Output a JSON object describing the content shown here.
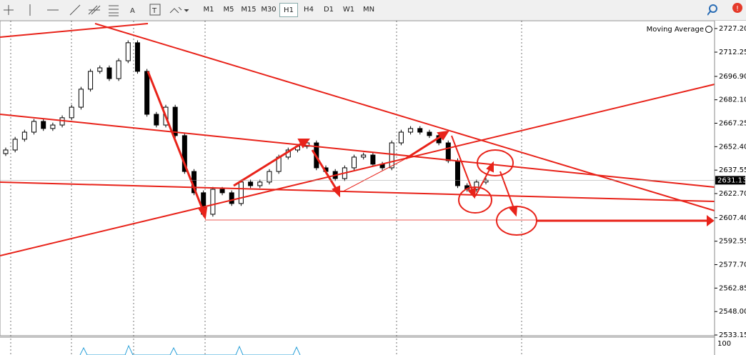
{
  "toolbar": {
    "timeframes": [
      "M1",
      "M5",
      "M15",
      "M30",
      "H1",
      "H4",
      "D1",
      "W1",
      "MN"
    ],
    "active": "H1"
  },
  "chart_data": {
    "type": "candlestick",
    "indicator": "Moving Average",
    "series": [
      {
        "name": null,
        "color": "#000000",
        "open": [
          2648.0,
          2650.3,
          2657.1,
          2661.6,
          2668.4,
          2663.9,
          2666.1,
          2670.7,
          2677.4,
          2688.8,
          2700.1,
          2702.3,
          2695.5,
          2706.8,
          2718.2,
          2700.1,
          2672.9,
          2666.1,
          2677.4,
          2659.4,
          2636.7,
          2623.2,
          2609.6,
          2625.4,
          2623.2,
          2616.4,
          2630.0,
          2627.7,
          2630.0,
          2636.7,
          2645.8,
          2650.3,
          2652.6,
          2654.8,
          2639.0,
          2636.7,
          2632.2,
          2639.0,
          2645.8,
          2647.1,
          2641.3,
          2639.0,
          2654.8,
          2661.6,
          2663.9,
          2661.6,
          2659.4,
          2654.8,
          2643.5,
          2627.7,
          2625.4,
          2630.0
        ],
        "high": [
          2651.8,
          2658.6,
          2663.1,
          2669.9,
          2669.9,
          2667.6,
          2672.2,
          2678.9,
          2690.3,
          2701.6,
          2703.8,
          2703.8,
          2708.3,
          2719.7,
          2719.7,
          2701.6,
          2674.4,
          2678.9,
          2678.9,
          2660.9,
          2638.2,
          2624.7,
          2626.9,
          2626.9,
          2624.7,
          2631.5,
          2631.5,
          2631.5,
          2638.2,
          2647.3,
          2651.8,
          2654.1,
          2656.3,
          2656.3,
          2640.5,
          2638.2,
          2640.5,
          2647.3,
          2648.6,
          2648.6,
          2642.8,
          2656.3,
          2663.1,
          2665.4,
          2665.4,
          2663.1,
          2660.9,
          2656.3,
          2645.0,
          2629.2,
          2631.5,
          2632.6
        ],
        "low": [
          2646.5,
          2648.8,
          2655.6,
          2660.1,
          2662.4,
          2662.4,
          2664.6,
          2669.2,
          2675.9,
          2687.3,
          2698.6,
          2694.0,
          2694.0,
          2705.3,
          2698.6,
          2671.4,
          2664.6,
          2664.6,
          2657.9,
          2635.2,
          2621.7,
          2608.1,
          2608.1,
          2621.7,
          2614.9,
          2614.9,
          2626.2,
          2626.2,
          2628.5,
          2635.2,
          2644.3,
          2648.8,
          2651.1,
          2637.5,
          2635.2,
          2630.7,
          2630.7,
          2637.5,
          2644.3,
          2639.8,
          2637.5,
          2637.5,
          2653.3,
          2660.1,
          2660.1,
          2657.9,
          2653.3,
          2642.0,
          2626.2,
          2623.9,
          2623.9,
          2628.5
        ],
        "close": [
          2650.3,
          2657.1,
          2661.6,
          2668.4,
          2663.9,
          2666.1,
          2670.7,
          2677.4,
          2688.8,
          2700.1,
          2702.3,
          2695.5,
          2706.8,
          2718.2,
          2700.1,
          2672.9,
          2666.1,
          2677.4,
          2659.4,
          2636.7,
          2623.2,
          2609.6,
          2625.4,
          2623.2,
          2616.4,
          2630.0,
          2627.7,
          2630.0,
          2636.7,
          2645.8,
          2650.3,
          2652.6,
          2654.8,
          2639.0,
          2636.7,
          2632.2,
          2639.0,
          2645.8,
          2647.1,
          2641.3,
          2639.0,
          2654.8,
          2661.6,
          2663.9,
          2661.6,
          2659.4,
          2654.8,
          2643.5,
          2627.7,
          2625.4,
          2630.0,
          2631.13
        ]
      }
    ],
    "current_price": 2631.13,
    "ylim": [
      2532.7,
      2731.7
    ],
    "yticks": [
      {
        "value": 2727.2,
        "label": "2727.20"
      },
      {
        "value": 2712.25,
        "label": "2712.25"
      },
      {
        "value": 2696.9,
        "label": "2696.90"
      },
      {
        "value": 2682.1,
        "label": "2682.10"
      },
      2667.25,
      {
        "value": 2652.4,
        "label": "2652.40"
      },
      2637.55,
      {
        "value": 2622.7,
        "label": "2622.70"
      },
      {
        "value": 2607.4,
        "label": "2607.40"
      },
      2592.55,
      {
        "value": 2577.7,
        "label": "2577.70"
      },
      2562.85,
      {
        "value": 2548.0,
        "label": "2548.00"
      },
      2533.15
    ],
    "sub_window_max": 100
  }
}
